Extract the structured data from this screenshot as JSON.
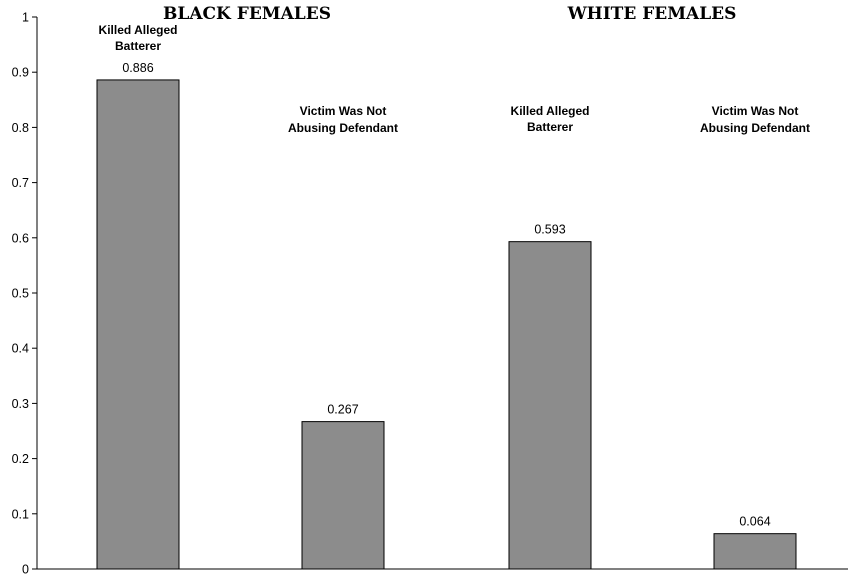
{
  "chart_data": {
    "type": "bar",
    "title": "",
    "xlabel": "",
    "ylabel": "",
    "ylim": [
      0,
      1
    ],
    "yticks": [
      0,
      0.1,
      0.2,
      0.3,
      0.4,
      0.5,
      0.6,
      0.7,
      0.8,
      0.9,
      1
    ],
    "ytick_labels": [
      "0",
      "0.1",
      "0.2",
      "0.3",
      "0.4",
      "0.5",
      "0.6",
      "0.7",
      "0.8",
      "0.9",
      "1"
    ],
    "grid": false,
    "legend": "none",
    "bar_color": "#8c8c8c",
    "groups": [
      {
        "title": "BLACK FEMALES",
        "bars": [
          {
            "label": [
              "Killed Alleged",
              "Batterer"
            ],
            "value": 0.886,
            "value_label": "0.886"
          },
          {
            "label": [
              "Victim Was Not",
              "Abusing Defendant"
            ],
            "value": 0.267,
            "value_label": "0.267"
          }
        ]
      },
      {
        "title": "WHITE FEMALES",
        "bars": [
          {
            "label": [
              "Killed Alleged",
              "Batterer"
            ],
            "value": 0.593,
            "value_label": "0.593"
          },
          {
            "label": [
              "Victim Was Not",
              "Abusing Defendant"
            ],
            "value": 0.064,
            "value_label": "0.064"
          }
        ]
      }
    ]
  }
}
